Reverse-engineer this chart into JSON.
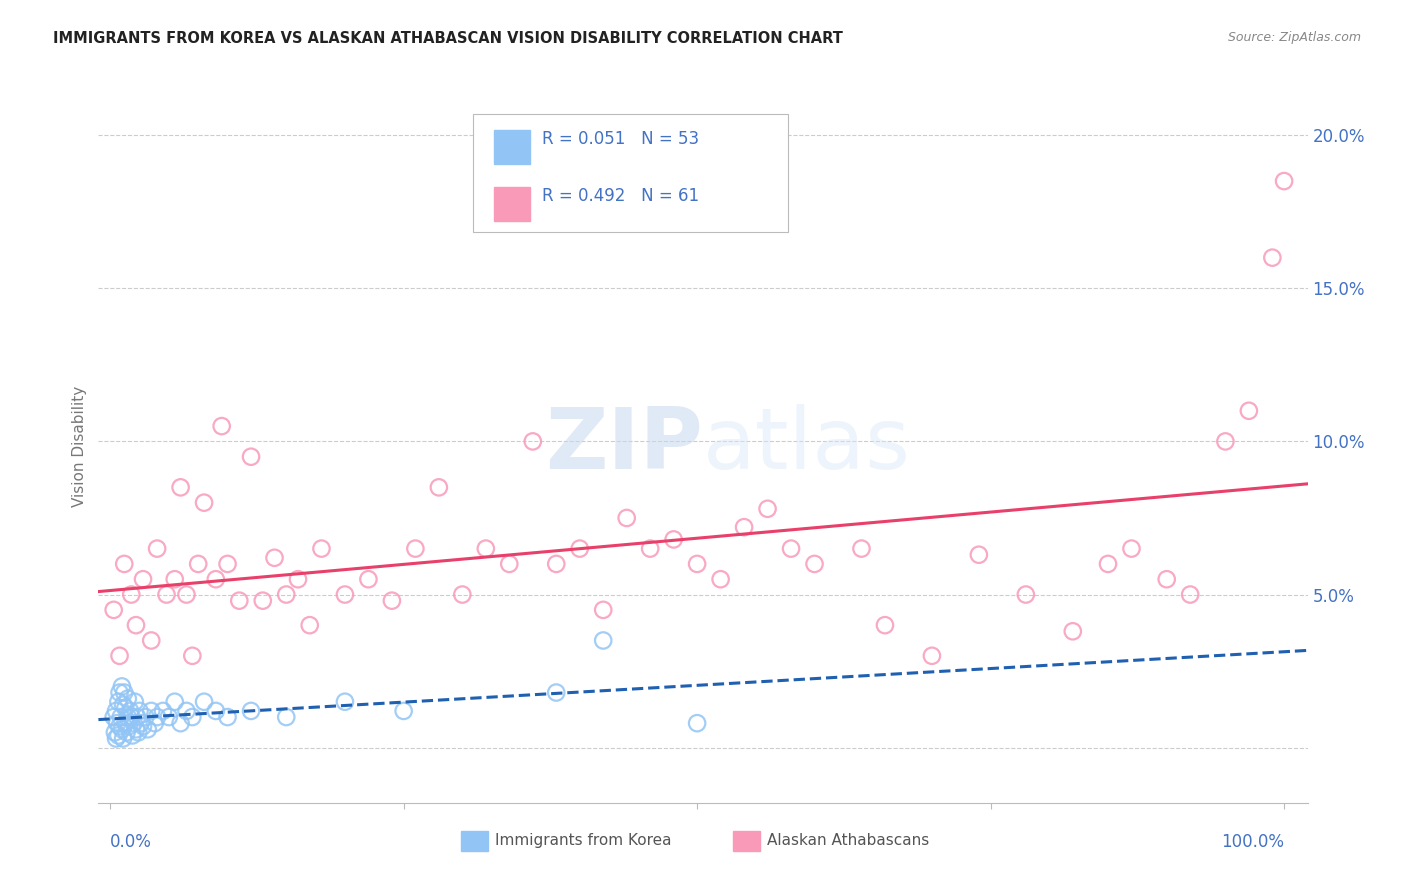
{
  "title": "IMMIGRANTS FROM KOREA VS ALASKAN ATHABASCAN VISION DISABILITY CORRELATION CHART",
  "source": "Source: ZipAtlas.com",
  "ylabel": "Vision Disability",
  "ytick_values": [
    0.0,
    0.05,
    0.1,
    0.15,
    0.2
  ],
  "ytick_labels": [
    "",
    "5.0%",
    "10.0%",
    "15.0%",
    "20.0%"
  ],
  "xlim": [
    -0.01,
    1.02
  ],
  "ylim": [
    -0.018,
    0.215
  ],
  "legend_korea_r": "R = 0.051",
  "legend_korea_n": "N = 53",
  "legend_ath_r": "R = 0.492",
  "legend_ath_n": "N = 61",
  "korea_color": "#92c5f5",
  "ath_color": "#f89ab8",
  "korea_edge_color": "#92c5f5",
  "ath_edge_color": "#f89ab8",
  "korea_line_color": "#2060b0",
  "ath_line_color": "#e8406a",
  "watermark_color": "#dce8f8",
  "background_color": "#ffffff",
  "grid_color": "#cccccc",
  "title_color": "#222222",
  "source_color": "#888888",
  "label_color": "#4472c4",
  "ylabel_color": "#777777",
  "bottom_label_color": "#555555",
  "korea_x": [
    0.003,
    0.004,
    0.005,
    0.005,
    0.006,
    0.007,
    0.007,
    0.008,
    0.008,
    0.009,
    0.01,
    0.01,
    0.011,
    0.011,
    0.012,
    0.013,
    0.013,
    0.014,
    0.015,
    0.015,
    0.016,
    0.017,
    0.018,
    0.019,
    0.02,
    0.021,
    0.022,
    0.023,
    0.024,
    0.025,
    0.026,
    0.028,
    0.03,
    0.032,
    0.035,
    0.038,
    0.04,
    0.045,
    0.05,
    0.055,
    0.06,
    0.065,
    0.07,
    0.08,
    0.09,
    0.1,
    0.12,
    0.15,
    0.2,
    0.25,
    0.38,
    0.42,
    0.5
  ],
  "korea_y": [
    0.01,
    0.005,
    0.012,
    0.003,
    0.008,
    0.015,
    0.004,
    0.018,
    0.007,
    0.01,
    0.02,
    0.006,
    0.014,
    0.003,
    0.018,
    0.008,
    0.013,
    0.005,
    0.01,
    0.016,
    0.007,
    0.012,
    0.01,
    0.004,
    0.008,
    0.015,
    0.006,
    0.01,
    0.005,
    0.012,
    0.008,
    0.007,
    0.01,
    0.006,
    0.012,
    0.008,
    0.01,
    0.012,
    0.01,
    0.015,
    0.008,
    0.012,
    0.01,
    0.015,
    0.012,
    0.01,
    0.012,
    0.01,
    0.015,
    0.012,
    0.018,
    0.035,
    0.008
  ],
  "ath_x": [
    0.003,
    0.008,
    0.012,
    0.018,
    0.022,
    0.028,
    0.035,
    0.04,
    0.048,
    0.055,
    0.06,
    0.065,
    0.07,
    0.075,
    0.08,
    0.09,
    0.095,
    0.1,
    0.11,
    0.12,
    0.13,
    0.14,
    0.15,
    0.16,
    0.17,
    0.18,
    0.2,
    0.22,
    0.24,
    0.26,
    0.28,
    0.3,
    0.32,
    0.34,
    0.36,
    0.38,
    0.4,
    0.42,
    0.44,
    0.46,
    0.48,
    0.5,
    0.52,
    0.54,
    0.56,
    0.58,
    0.6,
    0.64,
    0.66,
    0.7,
    0.74,
    0.78,
    0.82,
    0.85,
    0.87,
    0.9,
    0.92,
    0.95,
    0.97,
    0.99,
    1.0
  ],
  "ath_y": [
    0.045,
    0.03,
    0.06,
    0.05,
    0.04,
    0.055,
    0.035,
    0.065,
    0.05,
    0.055,
    0.085,
    0.05,
    0.03,
    0.06,
    0.08,
    0.055,
    0.105,
    0.06,
    0.048,
    0.095,
    0.048,
    0.062,
    0.05,
    0.055,
    0.04,
    0.065,
    0.05,
    0.055,
    0.048,
    0.065,
    0.085,
    0.05,
    0.065,
    0.06,
    0.1,
    0.06,
    0.065,
    0.045,
    0.075,
    0.065,
    0.068,
    0.06,
    0.055,
    0.072,
    0.078,
    0.065,
    0.06,
    0.065,
    0.04,
    0.03,
    0.063,
    0.05,
    0.038,
    0.06,
    0.065,
    0.055,
    0.05,
    0.1,
    0.11,
    0.16,
    0.185
  ]
}
